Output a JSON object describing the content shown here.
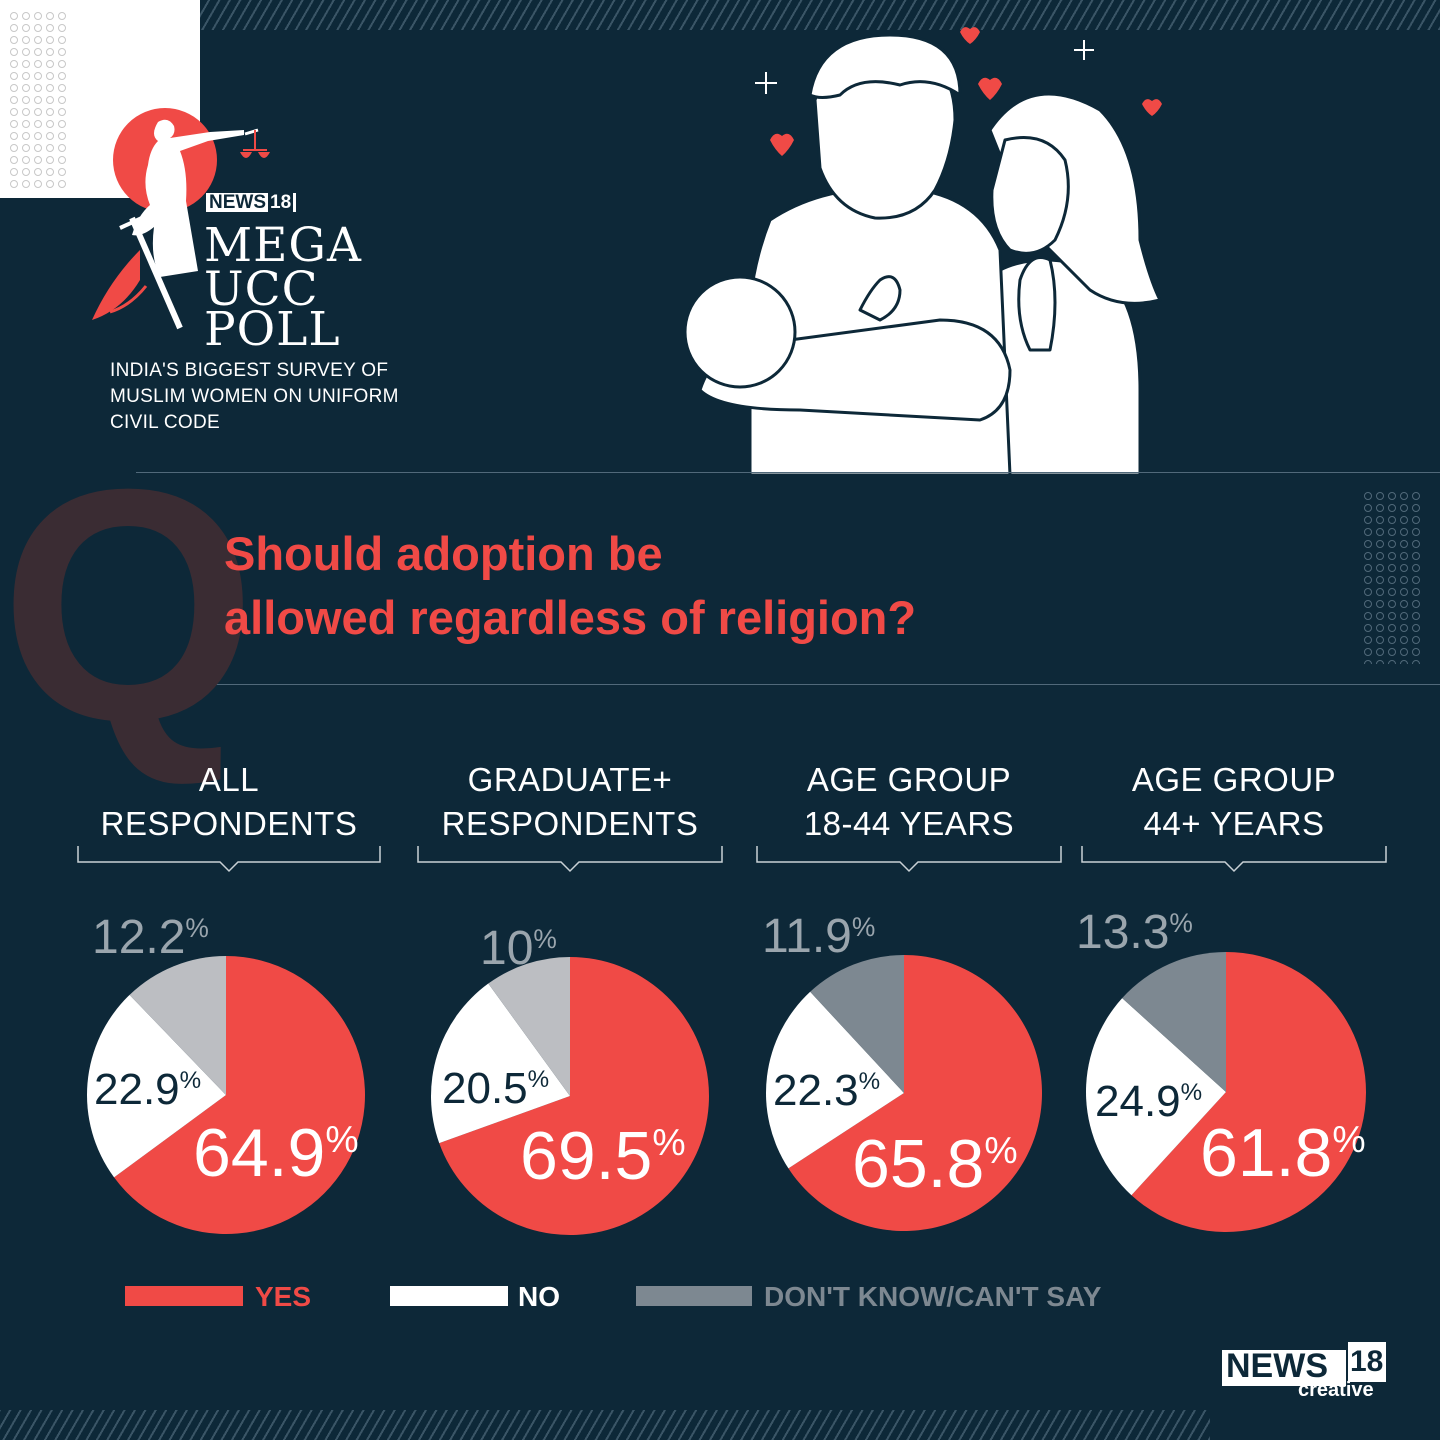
{
  "brand": {
    "logo_news": "NEWS",
    "logo_news_sup": "18",
    "poll_line1": "MEGA",
    "poll_line2": "UCC",
    "poll_line3": "POLL",
    "subtitle": "INDIA'S BIGGEST SURVEY OF MUSLIM WOMEN ON UNIFORM CIVIL CODE",
    "footer_news": "NEWS",
    "footer_sup": "18",
    "footer_creative": "creative"
  },
  "question": {
    "letter": "Q",
    "line1": "Should adoption be",
    "line2": "allowed regardless of religion?"
  },
  "colors": {
    "background": "#0d2838",
    "yes": "#f04a46",
    "no": "#ffffff",
    "dont_know_light": "#bcbec2",
    "dont_know_dark": "#7d8891"
  },
  "chart_data": {
    "type": "pie",
    "title": "Should adoption be allowed regardless of religion?",
    "categories": [
      "YES",
      "NO",
      "DON'T KNOW/CAN'T SAY"
    ],
    "series": [
      {
        "name": "ALL RESPONDENTS",
        "label_line1": "ALL",
        "label_line2": "RESPONDENTS",
        "values": [
          64.9,
          22.9,
          12.2
        ],
        "labels": [
          "64.9",
          "22.9",
          "12.2"
        ]
      },
      {
        "name": "GRADUATE+ RESPONDENTS",
        "label_line1": "GRADUATE+",
        "label_line2": "RESPONDENTS",
        "values": [
          69.5,
          20.5,
          10
        ],
        "labels": [
          "69.5",
          "20.5",
          "10"
        ]
      },
      {
        "name": "AGE GROUP 18-44 YEARS",
        "label_line1": "AGE GROUP",
        "label_line2": "18-44 YEARS",
        "values": [
          65.8,
          22.3,
          11.9
        ],
        "labels": [
          "65.8",
          "22.3",
          "11.9"
        ]
      },
      {
        "name": "AGE GROUP 44+ YEARS",
        "label_line1": "AGE GROUP",
        "label_line2": "44+ YEARS",
        "values": [
          61.8,
          24.9,
          13.3
        ],
        "labels": [
          "61.8",
          "24.9",
          "13.3"
        ]
      }
    ],
    "percent_symbol": "%",
    "legend": [
      {
        "label": "YES",
        "color": "#f04a46"
      },
      {
        "label": "NO",
        "color": "#ffffff"
      },
      {
        "label": "DON'T KNOW/CAN'T SAY",
        "color": "#7d8891"
      }
    ],
    "legend_position": "bottom"
  }
}
